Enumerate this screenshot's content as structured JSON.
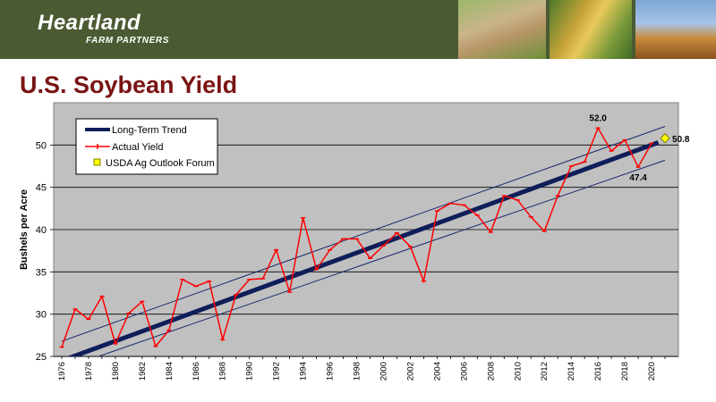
{
  "header": {
    "brand_name": "Heartland",
    "brand_sub": "FARM PARTNERS"
  },
  "title": "U.S. Soybean Yield",
  "chart_data": {
    "type": "line",
    "ylabel": "Bushels per Acre",
    "ylim": [
      25,
      55
    ],
    "xlim": [
      1976,
      2021
    ],
    "yticks": [
      25,
      30,
      35,
      40,
      45,
      50
    ],
    "xticks": [
      1976,
      1978,
      1980,
      1982,
      1984,
      1986,
      1988,
      1990,
      1992,
      1994,
      1996,
      1998,
      2000,
      2002,
      2004,
      2006,
      2008,
      2010,
      2012,
      2014,
      2016,
      2018,
      2020
    ],
    "grid": "horizontal",
    "legend_position": "top-left",
    "colors": {
      "plot_bg": "#c0c0c0",
      "trend": "#0f1e5a",
      "actual": "#ff0000",
      "band": "#1a2a6a",
      "forum": "#ffff00"
    },
    "series": [
      {
        "name": "Long-Term Trend",
        "x": [
          1976,
          2020.5
        ],
        "y": [
          24.5,
          50.3
        ]
      },
      {
        "name": "Actual Yield",
        "x": [
          1976,
          1977,
          1978,
          1979,
          1980,
          1981,
          1982,
          1983,
          1984,
          1985,
          1986,
          1987,
          1988,
          1989,
          1990,
          1991,
          1992,
          1993,
          1994,
          1995,
          1996,
          1997,
          1998,
          1999,
          2000,
          2001,
          2002,
          2003,
          2004,
          2005,
          2006,
          2007,
          2008,
          2009,
          2010,
          2011,
          2012,
          2013,
          2014,
          2015,
          2016,
          2017,
          2018,
          2019,
          2020
        ],
        "y": [
          26.1,
          30.6,
          29.4,
          32.1,
          26.5,
          30.1,
          31.5,
          26.2,
          28.1,
          34.1,
          33.3,
          33.9,
          27.0,
          32.3,
          34.1,
          34.2,
          37.6,
          32.6,
          41.4,
          35.3,
          37.6,
          38.9,
          38.9,
          36.6,
          38.1,
          39.6,
          38.0,
          33.9,
          42.2,
          43.1,
          42.9,
          41.7,
          39.7,
          44.0,
          43.5,
          41.5,
          39.8,
          44.0,
          47.5,
          48.0,
          52.0,
          49.3,
          50.6,
          47.4,
          50.2
        ]
      },
      {
        "name": "USDA Ag Outlook Forum",
        "x": [
          2021
        ],
        "y": [
          50.8
        ]
      }
    ],
    "band": {
      "upper": {
        "x": [
          1976,
          2021
        ],
        "y": [
          26.8,
          52.2
        ]
      },
      "lower": {
        "x": [
          1978,
          2021
        ],
        "y": [
          24.6,
          48.2
        ]
      }
    },
    "annotations": [
      {
        "text": "52.0",
        "x": 2016,
        "y": 52.0,
        "position": "above"
      },
      {
        "text": "47.4",
        "x": 2019,
        "y": 47.4,
        "position": "below"
      },
      {
        "text": "50.8",
        "x": 2021,
        "y": 50.8,
        "position": "right"
      }
    ]
  }
}
